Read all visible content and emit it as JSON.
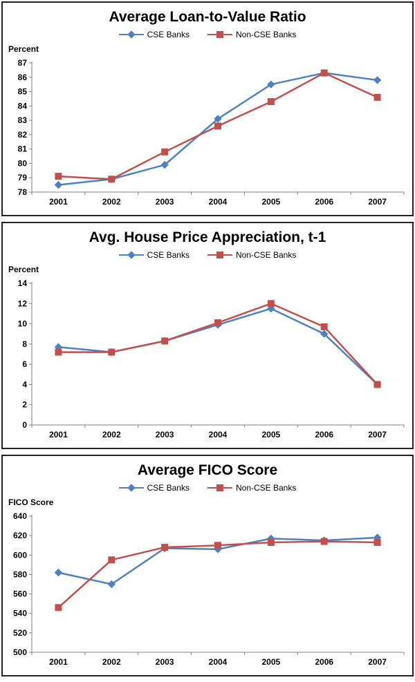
{
  "chart_data": [
    {
      "type": "line",
      "title": "Average Loan-to-Value Ratio",
      "ylabel": "Percent",
      "x": [
        "2001",
        "2002",
        "2003",
        "2004",
        "2005",
        "2006",
        "2007"
      ],
      "series": [
        {
          "name": "CSE Banks",
          "color": "#4F81BD",
          "marker": "diamond",
          "values": [
            78.5,
            78.9,
            79.9,
            83.1,
            85.5,
            86.3,
            85.8
          ]
        },
        {
          "name": "Non-CSE Banks",
          "color": "#C0504D",
          "marker": "square",
          "values": [
            79.1,
            78.9,
            80.8,
            82.6,
            84.3,
            86.3,
            84.6
          ]
        }
      ],
      "ylim": [
        78,
        87
      ],
      "ytick_step": 1,
      "grid": false,
      "legend_position": "top"
    },
    {
      "type": "line",
      "title": "Avg. House Price Appreciation, t-1",
      "ylabel": "Percent",
      "x": [
        "2001",
        "2002",
        "2003",
        "2004",
        "2005",
        "2006",
        "2007"
      ],
      "series": [
        {
          "name": "CSE Banks",
          "color": "#4F81BD",
          "marker": "diamond",
          "values": [
            7.7,
            7.2,
            8.3,
            9.9,
            11.5,
            9.0,
            4.0
          ]
        },
        {
          "name": "Non-CSE Banks",
          "color": "#C0504D",
          "marker": "square",
          "values": [
            7.2,
            7.2,
            8.3,
            10.1,
            12.0,
            9.7,
            4.0
          ]
        }
      ],
      "ylim": [
        0,
        14
      ],
      "ytick_step": 2,
      "grid": false,
      "legend_position": "top"
    },
    {
      "type": "line",
      "title": "Average FICO Score",
      "ylabel": "FICO Score",
      "x": [
        "2001",
        "2002",
        "2003",
        "2004",
        "2005",
        "2006",
        "2007"
      ],
      "series": [
        {
          "name": "CSE Banks",
          "color": "#4F81BD",
          "marker": "diamond",
          "values": [
            582,
            570,
            607,
            606,
            617,
            615,
            618
          ]
        },
        {
          "name": "Non-CSE Banks",
          "color": "#C0504D",
          "marker": "square",
          "values": [
            546,
            595,
            608,
            610,
            613,
            614,
            613
          ]
        }
      ],
      "ylim": [
        500,
        640
      ],
      "ytick_step": 20,
      "grid": false,
      "legend_position": "top"
    }
  ]
}
